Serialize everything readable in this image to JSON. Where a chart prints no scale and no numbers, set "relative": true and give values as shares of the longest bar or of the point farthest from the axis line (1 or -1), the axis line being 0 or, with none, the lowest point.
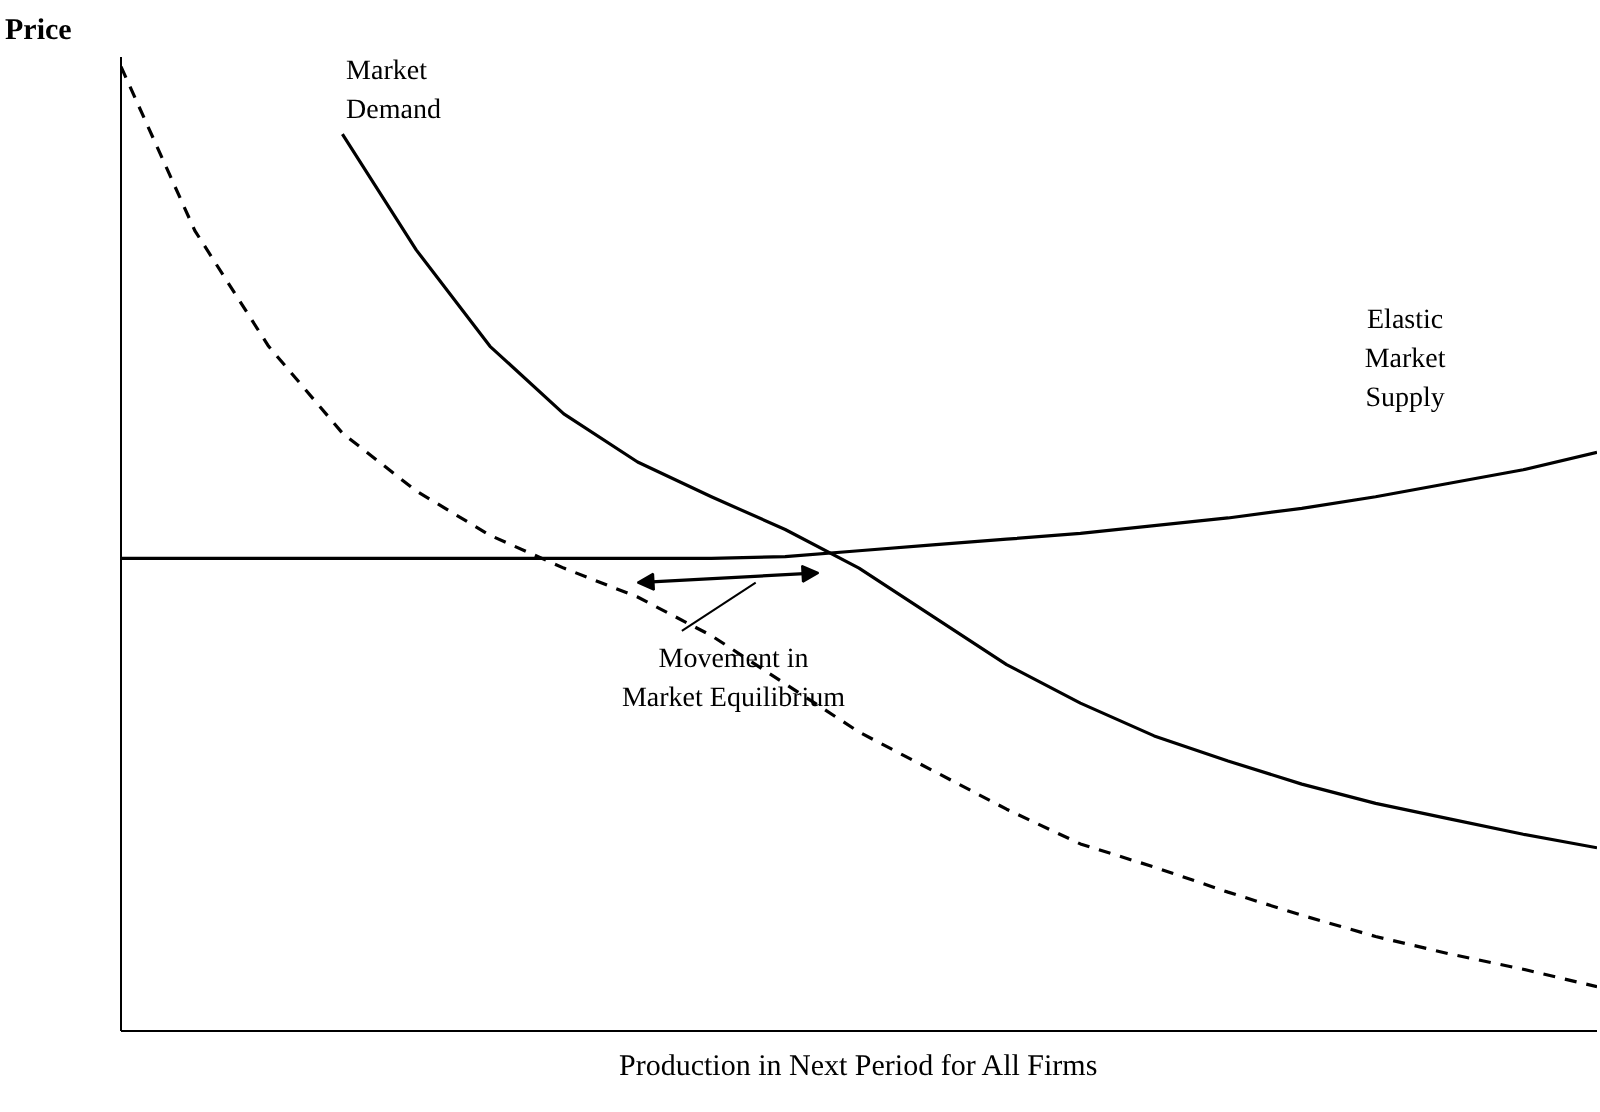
{
  "chart_data": {
    "type": "line",
    "relative": true,
    "xlabel": "Production in Next Period for All Firms",
    "ylabel": "Price",
    "categories": [
      null,
      null,
      null,
      null,
      null,
      null,
      null,
      null,
      null,
      null,
      null,
      null,
      null,
      null,
      null,
      null,
      null,
      null,
      null,
      null,
      null
    ],
    "series": [
      {
        "color": "#000000",
        "line_style": "dashed",
        "values": [
          1.0,
          0.83,
          0.71,
          0.62,
          0.56,
          0.514,
          0.48,
          0.45,
          0.41,
          0.36,
          0.31,
          0.27,
          0.23,
          0.194,
          0.17,
          0.144,
          0.12,
          0.098,
          0.08,
          0.064,
          0.046
        ]
      },
      {
        "name": "Market Demand",
        "color": "#000000",
        "line_style": "solid",
        "values": [
          null,
          null,
          null,
          0.93,
          0.81,
          0.71,
          0.64,
          0.59,
          0.554,
          0.52,
          0.48,
          0.43,
          0.38,
          0.34,
          0.306,
          0.28,
          0.256,
          0.236,
          0.22,
          0.204,
          0.19
        ]
      },
      {
        "name": "Elastic Market Supply",
        "color": "#000000",
        "line_style": "solid",
        "values": [
          0.49,
          0.49,
          0.49,
          0.49,
          0.49,
          0.49,
          0.49,
          0.49,
          0.49,
          0.492,
          0.498,
          0.504,
          0.51,
          0.516,
          0.524,
          0.532,
          0.542,
          0.554,
          0.568,
          0.582,
          0.6
        ]
      }
    ],
    "annotations": [
      "Movement in Market Equilibrium"
    ],
    "legend": false,
    "grid": false,
    "marker": "none"
  }
}
